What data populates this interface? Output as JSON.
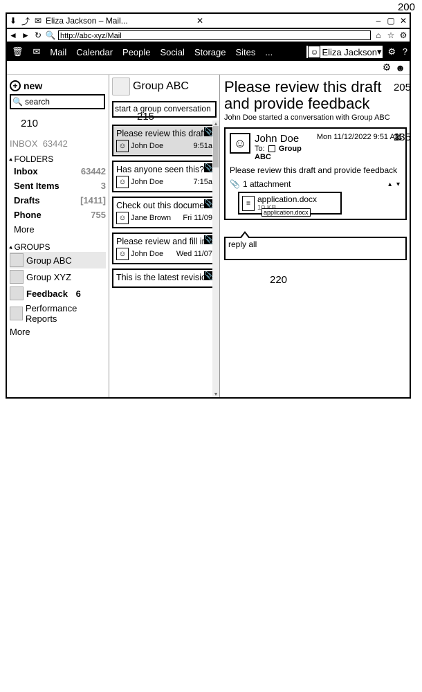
{
  "browser": {
    "tab_title": "Eliza Jackson – Mail...",
    "url": "http://abc-xyz/Mail"
  },
  "appbar": {
    "items": [
      "Mail",
      "Calendar",
      "People",
      "Social",
      "Storage",
      "Sites",
      "..."
    ],
    "user_name": "Eliza Jackson"
  },
  "sidebar": {
    "new_label": "new",
    "search_placeholder": "search",
    "inbox_header_label": "INBOX",
    "inbox_header_count": "63442",
    "folders_label": "FOLDERS",
    "folders": [
      {
        "label": "Inbox",
        "count": "63442",
        "bold": true
      },
      {
        "label": "Sent Items",
        "count": "3",
        "bold": true
      },
      {
        "label": "Drafts",
        "count": "[1411]",
        "bold": true
      },
      {
        "label": "Phone",
        "count": "755",
        "bold": true
      },
      {
        "label": "More",
        "count": "",
        "bold": false
      }
    ],
    "groups_label": "GROUPS",
    "groups": [
      {
        "label": "Group ABC",
        "selected": true
      },
      {
        "label": "Group XYZ",
        "selected": false
      },
      {
        "label": "Feedback",
        "count": "6",
        "selected": false,
        "bold": true
      },
      {
        "label": "Performance Reports",
        "selected": false
      },
      {
        "label": "More",
        "selected": false
      }
    ]
  },
  "listcol": {
    "group_title": "Group ABC",
    "start_conv": "start a group conversation",
    "threads": [
      {
        "subject": "Please review this draft...",
        "from": "John Doe",
        "time": "9:51a",
        "selected": true,
        "attach": true
      },
      {
        "subject": "Has anyone seen this?",
        "from": "John Doe",
        "time": "7:15a",
        "selected": false,
        "attach": true
      },
      {
        "subject": "Check out this document!",
        "from": "Jane Brown",
        "time": "Fri 11/09",
        "selected": false,
        "attach": true
      },
      {
        "subject": "Please review and fill in the...",
        "from": "John Doe",
        "time": "Wed 11/07",
        "selected": false,
        "attach": true
      },
      {
        "subject": "This is the latest revision",
        "from": "",
        "time": "",
        "selected": false,
        "attach": true
      }
    ]
  },
  "reading": {
    "title": "Please review this draft and provide feedback",
    "subtitle": "John Doe started a conversation with Group ABC",
    "from": "John Doe",
    "to_label": "To:",
    "to_group": "Group ABC",
    "date": "Mon 11/12/2022 9:51 AM",
    "msg_subject": "Please review this draft and provide feedback",
    "attach_count_label": "1 attachment",
    "attachment": {
      "name": "application.docx",
      "size": "10 KB",
      "tooltip": "application.docx"
    },
    "reply_label": "reply all"
  },
  "colors": {
    "navbar_bg": "#000000",
    "navbar_fg": "#ffffff",
    "selection_bg": "#dcdcdc",
    "muted": "#888888",
    "border": "#000000",
    "scroll_track": "#eeeeee",
    "scroll_thumb": "#bbbbbb"
  }
}
